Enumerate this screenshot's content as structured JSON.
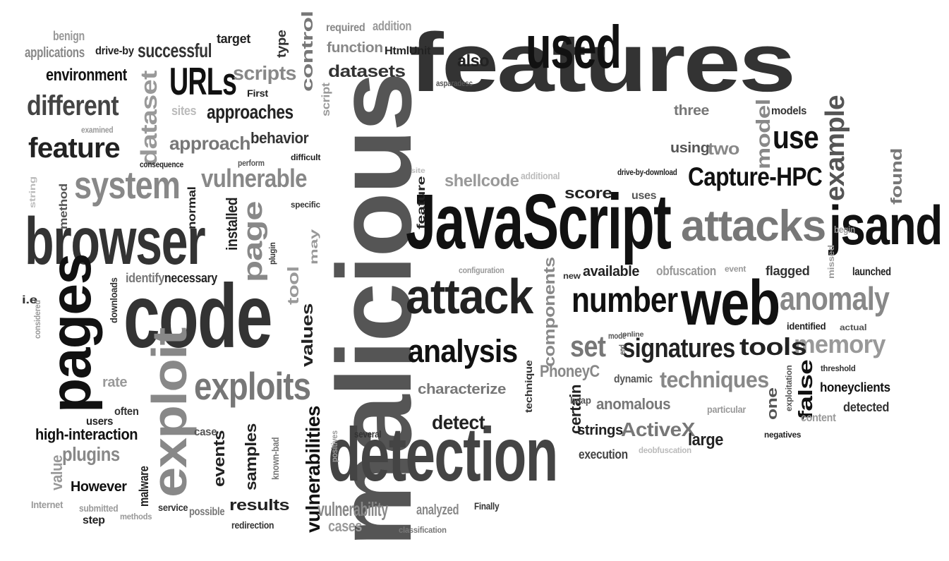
{
  "words": [
    {
      "text": "malicious",
      "color": "#555555"
    },
    {
      "text": "features",
      "color": "#333333"
    },
    {
      "text": "code",
      "color": "#333333"
    },
    {
      "text": "JavaScript",
      "color": "#111111"
    },
    {
      "text": "detection",
      "color": "#444444"
    },
    {
      "text": "browser",
      "color": "#333333"
    },
    {
      "text": "pages",
      "color": "#111111"
    },
    {
      "text": "used",
      "color": "#111111"
    },
    {
      "text": "attack",
      "color": "#222222"
    },
    {
      "text": "web",
      "color": "#111111"
    },
    {
      "text": "jsand",
      "color": "#111111"
    },
    {
      "text": "attacks",
      "color": "#777777"
    },
    {
      "text": "exploit",
      "color": "#888888"
    },
    {
      "text": "exploits",
      "color": "#777777"
    },
    {
      "text": "system",
      "color": "#888888"
    },
    {
      "text": "feature",
      "color": "#222222"
    },
    {
      "text": "different",
      "color": "#444444"
    },
    {
      "text": "URLs",
      "color": "#111111"
    },
    {
      "text": "page",
      "color": "#888888"
    },
    {
      "text": "dataset",
      "color": "#999999"
    },
    {
      "text": "number",
      "color": "#111111"
    },
    {
      "text": "analysis",
      "color": "#111111"
    },
    {
      "text": "anomaly",
      "color": "#888888"
    },
    {
      "text": "signatures",
      "color": "#222222"
    },
    {
      "text": "Capture-HPC",
      "color": "#111111"
    },
    {
      "text": "memory",
      "color": "#999999"
    },
    {
      "text": "use",
      "color": "#111111"
    },
    {
      "text": "example",
      "color": "#555555"
    },
    {
      "text": "vulnerable",
      "color": "#888888"
    },
    {
      "text": "approaches",
      "color": "#222222"
    },
    {
      "text": "scripts",
      "color": "#888888"
    },
    {
      "text": "successful",
      "color": "#333333"
    },
    {
      "text": "environment",
      "color": "#111111"
    },
    {
      "text": "approach",
      "color": "#777777"
    },
    {
      "text": "behavior",
      "color": "#333333"
    },
    {
      "text": "control",
      "color": "#777777"
    },
    {
      "text": "datasets",
      "color": "#333333"
    },
    {
      "text": "function",
      "color": "#888888"
    },
    {
      "text": "also",
      "color": "#222222"
    },
    {
      "text": "set",
      "color": "#777777"
    },
    {
      "text": "tools",
      "color": "#222222"
    },
    {
      "text": "techniques",
      "color": "#888888"
    },
    {
      "text": "vulnerabilities",
      "color": "#111111"
    },
    {
      "text": "false",
      "color": "#111111"
    },
    {
      "text": "honeyclients",
      "color": "#111111"
    },
    {
      "text": "characterize",
      "color": "#777777"
    },
    {
      "text": "detect",
      "color": "#222222"
    },
    {
      "text": "certain",
      "color": "#222222"
    },
    {
      "text": "anomalous",
      "color": "#777777"
    },
    {
      "text": "ActiveX",
      "color": "#777777"
    },
    {
      "text": "PhoneyC",
      "color": "#888888"
    },
    {
      "text": "shellcode",
      "color": "#999999"
    },
    {
      "text": "score",
      "color": "#222222"
    },
    {
      "text": "model",
      "color": "#888888"
    },
    {
      "text": "three",
      "color": "#777777"
    },
    {
      "text": "two",
      "color": "#888888"
    },
    {
      "text": "using",
      "color": "#555555"
    },
    {
      "text": "found",
      "color": "#777777"
    },
    {
      "text": "flagged",
      "color": "#333333"
    },
    {
      "text": "available",
      "color": "#222222"
    },
    {
      "text": "obfuscation",
      "color": "#999999"
    },
    {
      "text": "samples",
      "color": "#222222"
    },
    {
      "text": "events",
      "color": "#222222"
    },
    {
      "text": "values",
      "color": "#222222"
    },
    {
      "text": "plugins",
      "color": "#888888"
    },
    {
      "text": "high-interaction",
      "color": "#111111"
    },
    {
      "text": "value",
      "color": "#999999"
    },
    {
      "text": "However",
      "color": "#111111"
    },
    {
      "text": "malware",
      "color": "#222222"
    },
    {
      "text": "results",
      "color": "#222222"
    },
    {
      "text": "vulnerability",
      "color": "#888888"
    },
    {
      "text": "cases",
      "color": "#999999"
    },
    {
      "text": "analyzed",
      "color": "#888888"
    },
    {
      "text": "strings",
      "color": "#222222"
    },
    {
      "text": "execution",
      "color": "#444444"
    },
    {
      "text": "large",
      "color": "#222222"
    },
    {
      "text": "one",
      "color": "#555555"
    },
    {
      "text": "detected",
      "color": "#333333"
    },
    {
      "text": "content",
      "color": "#999999"
    },
    {
      "text": "applications",
      "color": "#888888"
    },
    {
      "text": "benign",
      "color": "#999999"
    },
    {
      "text": "drive-by",
      "color": "#222222"
    },
    {
      "text": "target",
      "color": "#222222"
    },
    {
      "text": "type",
      "color": "#333333"
    },
    {
      "text": "required",
      "color": "#888888"
    },
    {
      "text": "addition",
      "color": "#999999"
    },
    {
      "text": "HtmlUnit",
      "color": "#222222"
    },
    {
      "text": "script",
      "color": "#999999"
    },
    {
      "text": "First",
      "color": "#222222"
    },
    {
      "text": "sites",
      "color": "#bbbbbb"
    },
    {
      "text": "examined",
      "color": "#999999"
    },
    {
      "text": "consequence",
      "color": "#222222"
    },
    {
      "text": "perform",
      "color": "#555555"
    },
    {
      "text": "difficult",
      "color": "#222222"
    },
    {
      "text": "asparadesc",
      "color": "#555555"
    },
    {
      "text": "site",
      "color": "#bbbbbb"
    },
    {
      "text": "additional",
      "color": "#bbbbbb"
    },
    {
      "text": "feature",
      "color": "#222222"
    },
    {
      "text": "uses",
      "color": "#555555"
    },
    {
      "text": "drive-by-download",
      "color": "#222222"
    },
    {
      "text": "begin",
      "color": "#999999"
    },
    {
      "text": "models",
      "color": "#333333"
    },
    {
      "text": "installed",
      "color": "#222222"
    },
    {
      "text": "normal",
      "color": "#222222"
    },
    {
      "text": "string",
      "color": "#bbbbbb"
    },
    {
      "text": "method",
      "color": "#555555"
    },
    {
      "text": "specific",
      "color": "#333333"
    },
    {
      "text": "may",
      "color": "#999999"
    },
    {
      "text": "plugin",
      "color": "#333333"
    },
    {
      "text": "tool",
      "color": "#999999"
    },
    {
      "text": "necessary",
      "color": "#222222"
    },
    {
      "text": "identify",
      "color": "#777777"
    },
    {
      "text": "configuration",
      "color": "#999999"
    },
    {
      "text": "i.e",
      "color": "#333333"
    },
    {
      "text": "considered",
      "color": "#999999"
    },
    {
      "text": "downloads",
      "color": "#333333"
    },
    {
      "text": "new",
      "color": "#333333"
    },
    {
      "text": "components",
      "color": "#888888"
    },
    {
      "text": "event",
      "color": "#999999"
    },
    {
      "text": "missed",
      "color": "#999999"
    },
    {
      "text": "launched",
      "color": "#222222"
    },
    {
      "text": "identified",
      "color": "#222222"
    },
    {
      "text": "actual",
      "color": "#555555"
    },
    {
      "text": "mode",
      "color": "#555555"
    },
    {
      "text": "online",
      "color": "#555555"
    },
    {
      "text": "end",
      "color": "#555555"
    },
    {
      "text": "dynamic",
      "color": "#555555"
    },
    {
      "text": "threshold",
      "color": "#333333"
    },
    {
      "text": "exploitation",
      "color": "#555555"
    },
    {
      "text": "rate",
      "color": "#999999"
    },
    {
      "text": "technique",
      "color": "#333333"
    },
    {
      "text": "heap",
      "color": "#555555"
    },
    {
      "text": "particular",
      "color": "#999999"
    },
    {
      "text": "negatives",
      "color": "#222222"
    },
    {
      "text": "often",
      "color": "#333333"
    },
    {
      "text": "users",
      "color": "#222222"
    },
    {
      "text": "case",
      "color": "#555555"
    },
    {
      "text": "several",
      "color": "#333333"
    },
    {
      "text": "positives",
      "color": "#999999"
    },
    {
      "text": "deobfuscation",
      "color": "#bbbbbb"
    },
    {
      "text": "known-bad",
      "color": "#777777"
    },
    {
      "text": "Internet",
      "color": "#999999"
    },
    {
      "text": "submitted",
      "color": "#999999"
    },
    {
      "text": "step",
      "color": "#222222"
    },
    {
      "text": "methods",
      "color": "#999999"
    },
    {
      "text": "service",
      "color": "#333333"
    },
    {
      "text": "possible",
      "color": "#777777"
    },
    {
      "text": "redirection",
      "color": "#333333"
    },
    {
      "text": "classification",
      "color": "#777777"
    },
    {
      "text": "Finally",
      "color": "#333333"
    }
  ]
}
